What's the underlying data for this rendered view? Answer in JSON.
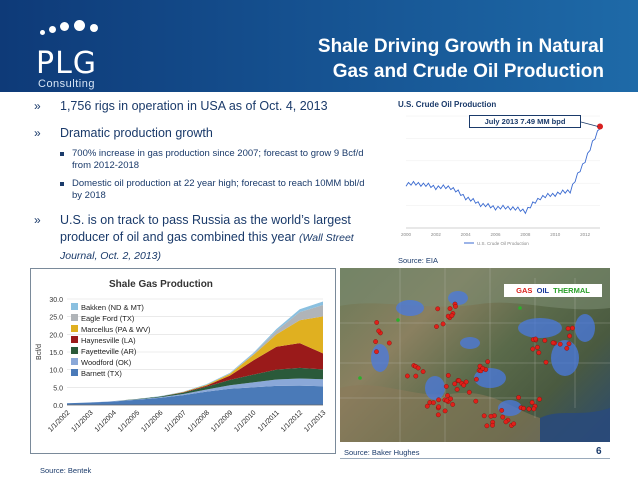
{
  "header": {
    "logo_text": "PLG",
    "logo_sub": "Consulting",
    "title_line1": "Shale Driving Growth in Natural",
    "title_line2": "Gas and Crude Oil Production"
  },
  "bullets": {
    "marker": "»",
    "b1": "1,756 rigs in operation in USA as of Oct. 4, 2013",
    "b2": "Dramatic production growth",
    "b2_sub1": "700% increase in gas production since 2007; forecast to grow 9 Bcf/d from 2012-2018",
    "b2_sub2": "Domestic oil production at 22 year high; forecast to reach 10MM bbl/d by 2018",
    "b3_main": "U.S. is on track to pass Russia as the world’s largest producer of oil and gas combined this year",
    "b3_source": "(Wall Street Journal, Oct. 2, 2013)"
  },
  "oil_chart": {
    "title": "U.S. Crude Oil Production",
    "callout": "July 2013 7.49 MM bpd",
    "source": "Source: EIA",
    "colors": {
      "line": "#3a6ad0",
      "point": "#d82020"
    }
  },
  "shale_chart": {
    "source": "Source: Bentek"
  },
  "map": {
    "legend_gas": "GAS",
    "legend_oil": "OIL",
    "legend_thermal": "THERMAL",
    "source": "Source: Baker Hughes"
  },
  "page_number": "6",
  "chart_data": [
    {
      "type": "area",
      "title": "Shale Gas Production",
      "ylabel": "Bcf/d",
      "ylim": [
        0,
        30
      ],
      "yticks": [
        "0.0",
        "5.0",
        "10.0",
        "15.0",
        "20.0",
        "25.0",
        "30.0"
      ],
      "categories": [
        "1/1/2002",
        "1/1/2003",
        "1/1/2004",
        "1/1/2005",
        "1/1/2006",
        "1/1/2007",
        "1/1/2008",
        "1/1/2009",
        "1/1/2010",
        "1/1/2011",
        "1/1/2012",
        "1/1/2013"
      ],
      "series": [
        {
          "name": "Barnett (TX)",
          "color": "#4a7ab8",
          "values": [
            0.5,
            0.7,
            1.0,
            1.5,
            2.0,
            2.8,
            3.8,
            4.6,
            5.0,
            5.4,
            5.5,
            5.3
          ]
        },
        {
          "name": "Woodford (OK)",
          "color": "#8aa8d8",
          "values": [
            0.0,
            0.0,
            0.1,
            0.1,
            0.2,
            0.3,
            0.6,
            1.0,
            1.4,
            1.8,
            2.0,
            2.0
          ]
        },
        {
          "name": "Fayetteville (AR)",
          "color": "#2a5a3a",
          "values": [
            0.0,
            0.0,
            0.0,
            0.1,
            0.2,
            0.4,
            0.8,
            1.5,
            2.2,
            2.8,
            3.0,
            2.8
          ]
        },
        {
          "name": "Haynesville (LA)",
          "color": "#9a1a1a",
          "values": [
            0.0,
            0.0,
            0.0,
            0.0,
            0.0,
            0.1,
            0.3,
            1.2,
            4.0,
            6.5,
            7.0,
            4.5
          ]
        },
        {
          "name": "Marcellus (PA & WV)",
          "color": "#e0b020",
          "values": [
            0.0,
            0.0,
            0.0,
            0.0,
            0.0,
            0.1,
            0.2,
            0.5,
            1.5,
            3.5,
            6.5,
            10.5
          ]
        },
        {
          "name": "Eagle Ford (TX)",
          "color": "#b0b4b8",
          "values": [
            0.0,
            0.0,
            0.0,
            0.0,
            0.0,
            0.0,
            0.0,
            0.1,
            0.3,
            1.0,
            2.3,
            3.2
          ]
        },
        {
          "name": "Bakken (ND & MT)",
          "color": "#8ac0e0",
          "values": [
            0.0,
            0.0,
            0.0,
            0.0,
            0.1,
            0.1,
            0.2,
            0.2,
            0.3,
            0.5,
            0.8,
            1.0
          ]
        }
      ]
    },
    {
      "type": "line",
      "title": "U.S. Crude Oil Production",
      "annotation": "July 2013 7.49 MM bpd",
      "x": [
        "2000",
        "2001",
        "2002",
        "2003",
        "2004",
        "2005",
        "2006",
        "2007",
        "2008",
        "2009",
        "2010",
        "2011",
        "2012",
        "2013"
      ],
      "series": [
        {
          "name": "U.S. Crude Oil Production",
          "values": [
            5.8,
            5.8,
            5.7,
            5.7,
            5.4,
            5.2,
            5.1,
            5.1,
            5.0,
            5.4,
            5.5,
            5.6,
            6.5,
            7.49
          ]
        }
      ]
    }
  ]
}
